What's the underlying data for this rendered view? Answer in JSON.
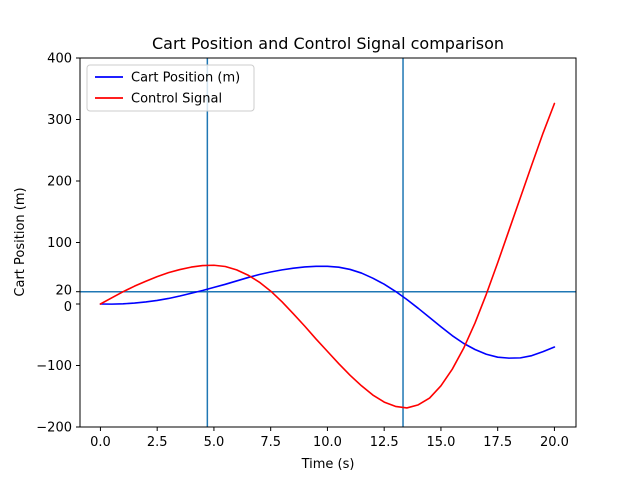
{
  "chart_data": {
    "type": "line",
    "title": "Cart Position and Control Signal comparison",
    "xlabel": "Time (s)",
    "ylabel": "Cart Position (m)",
    "xlim": [
      -0.9,
      20.95
    ],
    "ylim": [
      -200,
      400
    ],
    "xticks": [
      0,
      2.5,
      5,
      7.5,
      10,
      12.5,
      15,
      17.5,
      20
    ],
    "xtick_labels": [
      "0.0",
      "2.5",
      "5.0",
      "7.5",
      "10.0",
      "12.5",
      "15.0",
      "17.5",
      "20.0"
    ],
    "yticks": [
      -200,
      -100,
      0,
      20,
      100,
      200,
      300,
      400
    ],
    "ytick_labels": [
      "−200",
      "−100",
      "0",
      "20",
      "100",
      "200",
      "300",
      "400"
    ],
    "legend_position": "top-left",
    "grid": false,
    "reference_lines": {
      "horizontal": [
        20
      ],
      "vertical": [
        4.71,
        13.33
      ],
      "color": "#1f77b4"
    },
    "series": [
      {
        "name": "Cart Position (m)",
        "color": "#0000ff",
        "x": [
          0,
          0.5,
          1,
          1.5,
          2,
          2.5,
          3,
          3.5,
          4,
          4.5,
          5,
          5.5,
          6,
          6.5,
          7,
          7.5,
          8,
          8.5,
          9,
          9.5,
          10,
          10.5,
          11,
          11.5,
          12,
          12.5,
          13,
          13.5,
          14,
          14.5,
          15,
          15.5,
          16,
          16.5,
          17,
          17.5,
          18,
          18.5,
          19,
          19.5,
          20
        ],
        "y": [
          0,
          -0.2,
          0.3,
          1.5,
          3.3,
          5.8,
          9,
          13,
          17.5,
          22,
          27,
          32,
          37.5,
          43,
          48,
          52,
          55.5,
          58.3,
          60.3,
          61.3,
          61.3,
          59.8,
          56.2,
          50.3,
          42,
          32.2,
          20.5,
          7.3,
          -7,
          -22,
          -37,
          -51.5,
          -64,
          -74,
          -81.7,
          -86.5,
          -88,
          -87.6,
          -84,
          -77.5,
          -70
        ]
      },
      {
        "name": "Control Signal",
        "color": "#ff0000",
        "x": [
          0,
          0.5,
          1,
          1.5,
          2,
          2.5,
          3,
          3.5,
          4,
          4.5,
          5,
          5.5,
          6,
          6.5,
          7,
          7.5,
          8,
          8.5,
          9,
          9.5,
          10,
          10.5,
          11,
          11.5,
          12,
          12.5,
          13,
          13.5,
          14,
          14.5,
          15,
          15.5,
          16,
          16.5,
          17,
          17.5,
          18,
          18.5,
          19,
          19.5,
          20
        ],
        "y": [
          0,
          10,
          20,
          29,
          37,
          44.5,
          51,
          56,
          60,
          62.5,
          63,
          61,
          55.5,
          47,
          35.5,
          21,
          3.5,
          -16,
          -36,
          -57,
          -77,
          -97,
          -116,
          -133,
          -148,
          -159.5,
          -166.5,
          -169,
          -164,
          -153,
          -133,
          -106,
          -72,
          -31,
          16,
          67,
          120,
          173,
          226,
          278,
          326
        ]
      }
    ]
  }
}
